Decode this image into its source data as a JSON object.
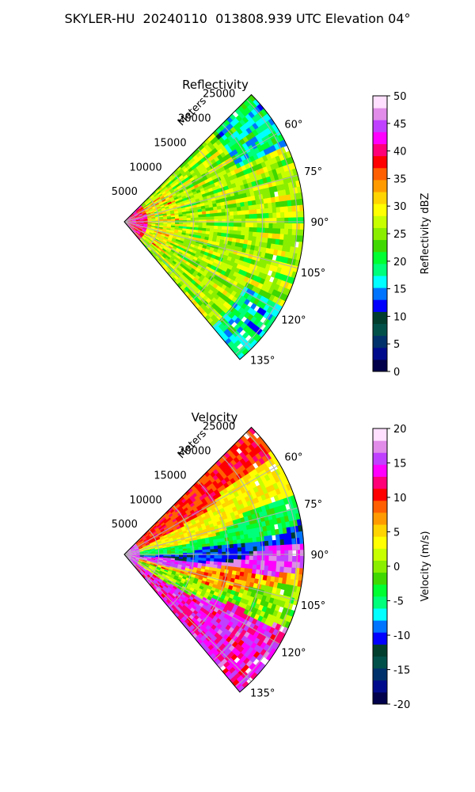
{
  "figure_title": "SKYLER-HU  20240110  013808.939 UTC Elevation 04°",
  "chart_data": [
    {
      "type": "heatmap",
      "projection": "polar-sector",
      "title": "Reflectivity",
      "range_label": "Meters",
      "range_ticks": [
        5000,
        10000,
        15000,
        20000,
        25000
      ],
      "range_max": 26000,
      "azimuth_range": [
        45,
        140
      ],
      "azimuth_ticks": [
        "60°",
        "75°",
        "90°",
        "105°",
        "120°",
        "135°"
      ],
      "azimuth_tick_values": [
        60,
        75,
        90,
        105,
        120,
        135
      ],
      "grid": true,
      "colorbar": {
        "label": "Reflectivity dBZ",
        "min": 0,
        "max": 50,
        "ticks": [
          0,
          5,
          10,
          15,
          20,
          25,
          30,
          35,
          40,
          45,
          50
        ],
        "colors": [
          "#00014a",
          "#000b8c",
          "#00316b",
          "#00504a",
          "#003d2d",
          "#0000ff",
          "#0073ff",
          "#00ffff",
          "#00ff7a",
          "#00ff32",
          "#3fd800",
          "#8aee00",
          "#c8ff00",
          "#ffff00",
          "#ffd400",
          "#ff9b00",
          "#ff5f00",
          "#ff0000",
          "#ff0078",
          "#ff00ff",
          "#c040ff",
          "#e08ce8",
          "#ffe0ff"
        ]
      }
    },
    {
      "type": "heatmap",
      "projection": "polar-sector",
      "title": "Velocity",
      "range_label": "Meters",
      "range_ticks": [
        5000,
        10000,
        15000,
        20000,
        25000
      ],
      "range_max": 26000,
      "azimuth_range": [
        45,
        140
      ],
      "azimuth_ticks": [
        "60°",
        "75°",
        "90°",
        "105°",
        "120°",
        "135°"
      ],
      "azimuth_tick_values": [
        60,
        75,
        90,
        105,
        120,
        135
      ],
      "grid": true,
      "colorbar": {
        "label": "Velocity (m/s)",
        "min": -20,
        "max": 20,
        "ticks": [
          -20,
          -15,
          -10,
          -5,
          0,
          5,
          10,
          15,
          20
        ],
        "colors": [
          "#00014a",
          "#000b8c",
          "#00316b",
          "#00504a",
          "#003d2d",
          "#0000ff",
          "#0073ff",
          "#00ffff",
          "#00ff7a",
          "#00ff32",
          "#3fd800",
          "#8aee00",
          "#c8ff00",
          "#ffff00",
          "#ffd400",
          "#ff9b00",
          "#ff5f00",
          "#ff0000",
          "#ff0078",
          "#ff00ff",
          "#c040ff",
          "#e08ce8",
          "#ffe0ff"
        ]
      }
    }
  ]
}
